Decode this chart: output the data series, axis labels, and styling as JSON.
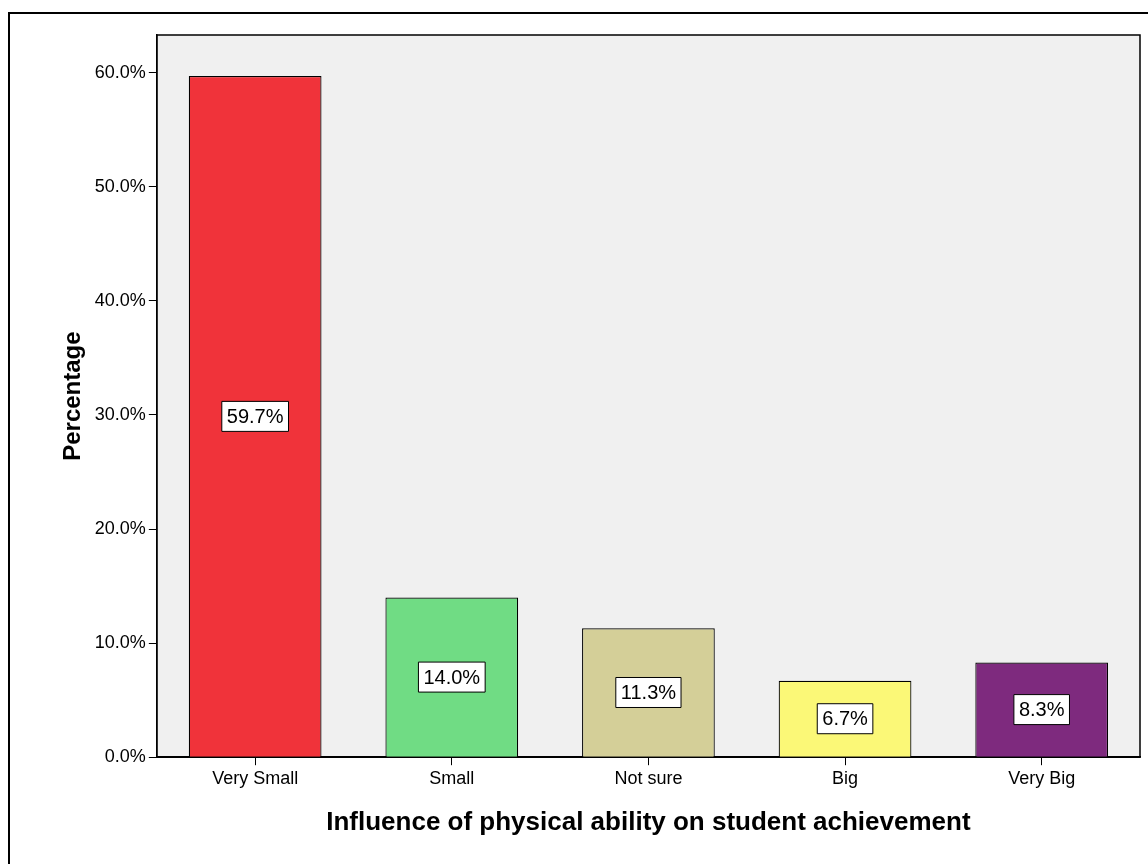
{
  "chart_data": {
    "type": "bar",
    "xlabel": "Influence of physical ability on student achievement",
    "ylabel": "Percentage",
    "categories": [
      "Very Small",
      "Small",
      "Not sure",
      "Big",
      "Very Big"
    ],
    "values": [
      59.7,
      14.0,
      11.3,
      6.7,
      8.3
    ],
    "colors": [
      "#f0333a",
      "#70dc84",
      "#d4cf98",
      "#fbf877",
      "#7e2a7e"
    ],
    "value_labels": [
      "59.7%",
      "14.0%",
      "11.3%",
      "6.7%",
      "8.3%"
    ],
    "ylim": [
      0,
      63.3
    ],
    "yticks": [
      {
        "value": 0,
        "label": "0.0%"
      },
      {
        "value": 10,
        "label": "10.0%"
      },
      {
        "value": 20,
        "label": "20.0%"
      },
      {
        "value": 30,
        "label": "30.0%"
      },
      {
        "value": 40,
        "label": "40.0%"
      },
      {
        "value": 50,
        "label": "50.0%"
      },
      {
        "value": 60,
        "label": "60.0%"
      }
    ],
    "grid": false,
    "legend": false
  }
}
